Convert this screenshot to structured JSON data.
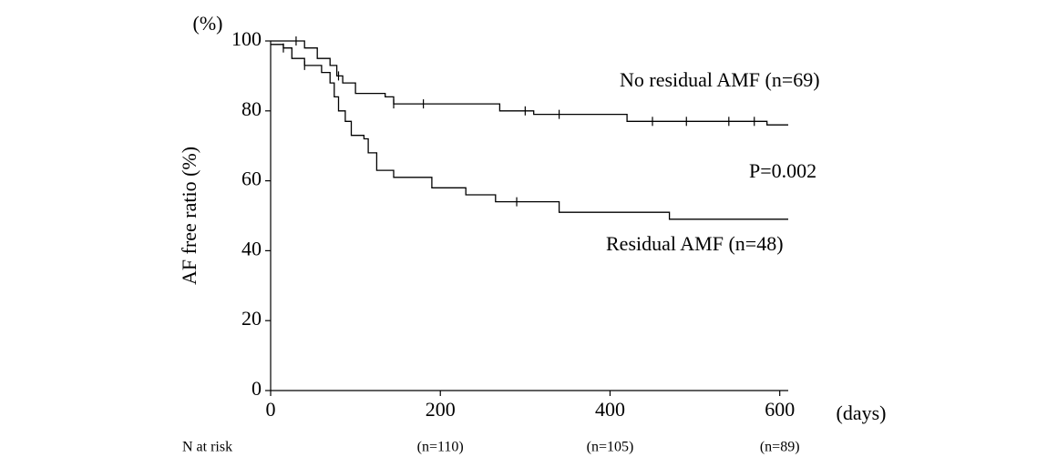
{
  "chart_data": {
    "type": "step",
    "y_axis_unit": "(%)",
    "y_label": "AF free ratio (%)",
    "x_label": "(days)",
    "annotation": "P=0.002",
    "xlim": [
      0,
      610
    ],
    "xticks": [
      0,
      200,
      400,
      600
    ],
    "ylim": [
      0,
      100
    ],
    "yticks": [
      0,
      20,
      40,
      60,
      80,
      100
    ],
    "grid": false,
    "series": [
      {
        "name": "No residual AMF (n=69)",
        "color": "#000000",
        "x": [
          0,
          40,
          40,
          55,
          55,
          70,
          70,
          78,
          78,
          85,
          85,
          100,
          100,
          135,
          135,
          145,
          145,
          270,
          270,
          310,
          310,
          420,
          420,
          585,
          585,
          610
        ],
        "values": [
          100,
          100,
          98,
          98,
          95,
          95,
          93,
          93,
          90,
          90,
          88,
          88,
          85,
          85,
          84,
          84,
          82,
          82,
          80,
          80,
          79,
          79,
          77,
          77,
          76,
          76
        ],
        "censored": {
          "x": [
            30,
            80,
            145,
            180,
            300,
            340,
            450,
            490,
            540,
            570
          ],
          "values": [
            100,
            90,
            82,
            82,
            80,
            79,
            77,
            77,
            77,
            77
          ]
        }
      },
      {
        "name": "Residual AMF (n=48)",
        "color": "#000000",
        "x": [
          0,
          15,
          15,
          25,
          25,
          40,
          40,
          60,
          60,
          70,
          70,
          75,
          75,
          80,
          80,
          88,
          88,
          95,
          95,
          110,
          110,
          115,
          115,
          125,
          125,
          145,
          145,
          190,
          190,
          230,
          230,
          265,
          265,
          340,
          340,
          470,
          470,
          610
        ],
        "values": [
          99,
          99,
          98,
          98,
          95,
          95,
          93,
          93,
          91,
          91,
          88,
          88,
          84,
          84,
          80,
          80,
          77,
          77,
          73,
          73,
          72,
          72,
          68,
          68,
          63,
          63,
          61,
          61,
          58,
          58,
          56,
          56,
          54,
          54,
          51,
          51,
          49,
          49
        ],
        "censored": {
          "x": [
            15,
            40,
            290
          ],
          "values": [
            98,
            93,
            54
          ]
        }
      }
    ],
    "risk_table": {
      "label": "N at risk",
      "x": [
        200,
        400,
        600
      ],
      "labels": [
        "(n=110)",
        "(n=105)",
        "(n=89)"
      ]
    }
  }
}
